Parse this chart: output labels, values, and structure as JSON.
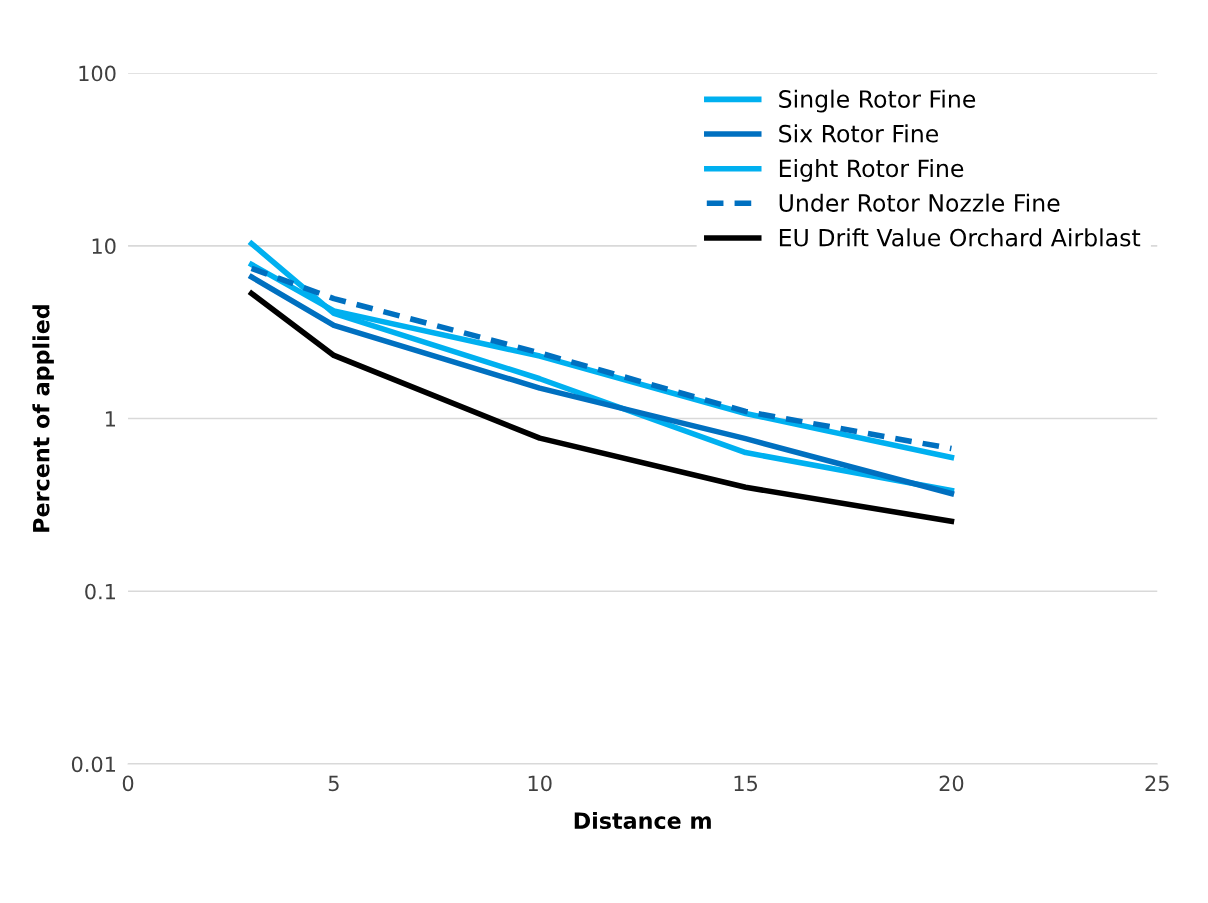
{
  "chart_data": {
    "type": "line",
    "xlabel": "Distance m",
    "ylabel": "Percent of applied",
    "log": "y",
    "xlim": [
      0,
      25
    ],
    "xticks": [
      0,
      5,
      10,
      15,
      20,
      25
    ],
    "ylim": [
      0.01,
      100
    ],
    "yticks": [
      0.01,
      0.1,
      1,
      10,
      100
    ],
    "grid": "y",
    "legend": "top right",
    "marker": "none",
    "x": [
      3,
      5,
      10,
      15,
      20
    ],
    "series": [
      {
        "name": "Single Rotor Fine",
        "color": "#00b0f0",
        "line_style": "solid",
        "values": [
          10.3,
          4.06,
          1.7,
          0.635,
          0.383
        ]
      },
      {
        "name": "Six Rotor Fine",
        "color": "#0070c0",
        "line_style": "solid",
        "values": [
          6.6,
          3.46,
          1.5,
          0.765,
          0.368
        ]
      },
      {
        "name": "Eight Rotor Fine",
        "color": "#00b0f0",
        "line_style": "solid",
        "values": [
          7.8,
          4.2,
          2.3,
          1.07,
          0.595
        ]
      },
      {
        "name": "Under Rotor Nozzle Fine",
        "color": "#0070c0",
        "line_style": "dashed",
        "values": [
          7.4,
          4.95,
          2.4,
          1.1,
          0.67
        ]
      },
      {
        "name": "EU Drift Value Orchard Airblast",
        "color": "#000000",
        "line_style": "solid",
        "values": [
          5.3,
          2.32,
          0.77,
          0.4,
          0.254
        ]
      }
    ]
  }
}
